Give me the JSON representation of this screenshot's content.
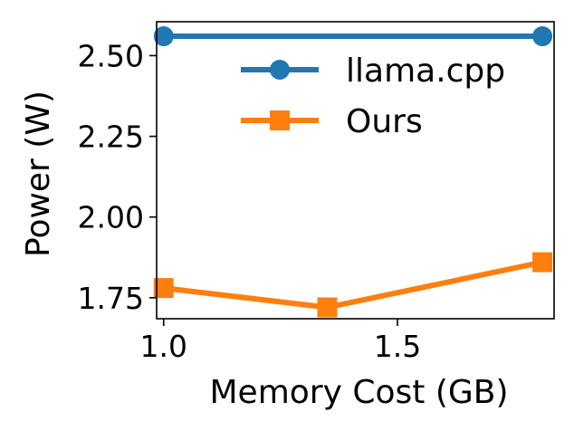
{
  "chart_data": {
    "type": "line",
    "title": "",
    "xlabel": "Memory Cost (GB)",
    "ylabel": "Power (W)",
    "xlim": [
      0.985,
      1.835
    ],
    "ylim": [
      1.685,
      2.605
    ],
    "x_ticks": [
      1.0,
      1.5
    ],
    "x_tick_labels": [
      "1.0",
      "1.5"
    ],
    "y_ticks": [
      1.75,
      2.0,
      2.25,
      2.5
    ],
    "y_tick_labels": [
      "1.75",
      "2.00",
      "2.25",
      "2.50"
    ],
    "grid": false,
    "legend_position": "upper right",
    "series": [
      {
        "name": "llama.cpp",
        "color": "#1f77b4",
        "marker": "circle",
        "points": [
          {
            "x": 1.0,
            "y": 2.56
          },
          {
            "x": 1.81,
            "y": 2.56
          }
        ]
      },
      {
        "name": "Ours",
        "color": "#ff7f0e",
        "marker": "square",
        "points": [
          {
            "x": 1.0,
            "y": 1.78
          },
          {
            "x": 1.35,
            "y": 1.72
          },
          {
            "x": 1.81,
            "y": 1.86
          }
        ]
      }
    ]
  }
}
